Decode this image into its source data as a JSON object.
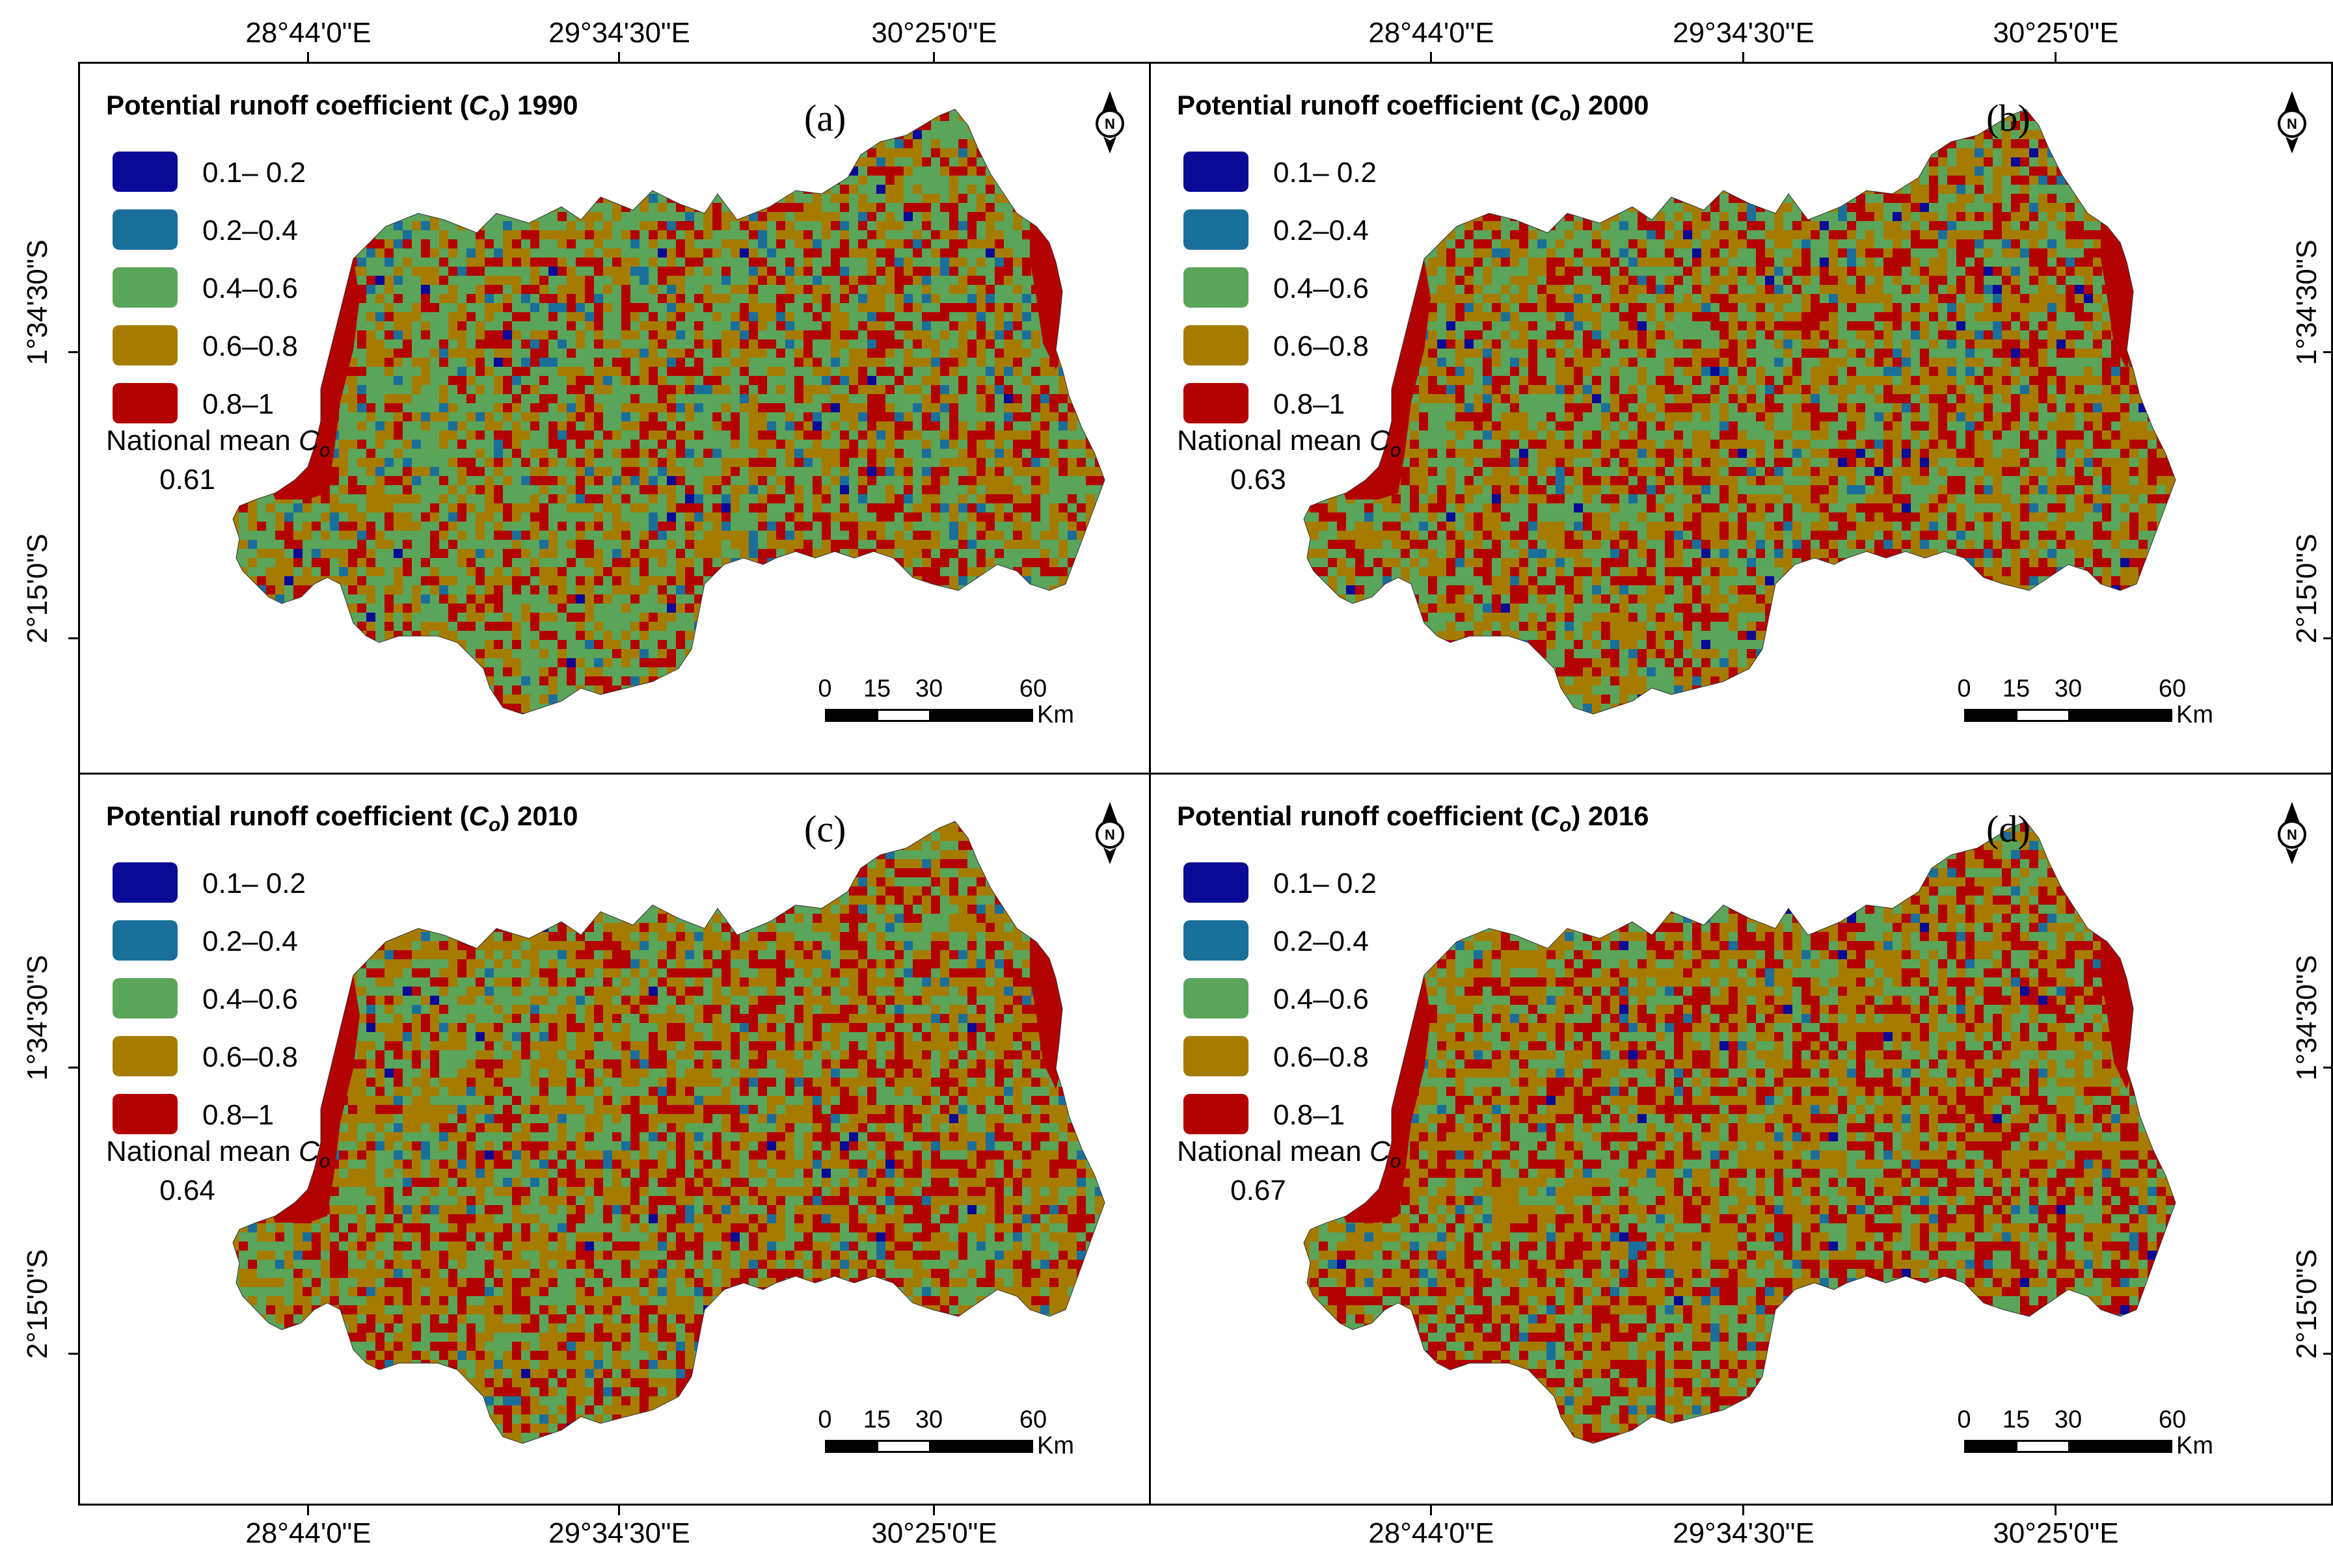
{
  "colors": {
    "class_0_1_0_2": "#0a0a96",
    "class_0_2_0_4": "#1a6f9a",
    "class_0_4_0_6": "#5aa55a",
    "class_0_6_0_8": "#a67c00",
    "class_0_8_1": "#b30000"
  },
  "axes": {
    "top_labels": [
      "28°44'0\"E",
      "29°34'30\"E",
      "30°25'0\"E",
      "28°44'0\"E",
      "29°34'30\"E",
      "30°25'0\"E"
    ],
    "bottom_labels": [
      "28°44'0\"E",
      "29°34'30\"E",
      "30°25'0\"E",
      "28°44'0\"E",
      "29°34'30\"E",
      "30°25'0\"E"
    ],
    "left_labels": [
      "1°34'30\"S",
      "2°15'0\"S",
      "1°34'30\"S",
      "2°15'0\"S"
    ],
    "right_labels": [
      "1°34'30\"S",
      "2°15'0\"S",
      "1°34'30\"S",
      "2°15'0\"S"
    ]
  },
  "legend_items": [
    "0.1– 0.2",
    "0.2–0.4",
    "0.4–0.6",
    "0.6–0.8",
    "0.8–1"
  ],
  "scale": {
    "ticks": [
      "0",
      "15",
      "30",
      "60"
    ],
    "unit": "Km"
  },
  "panels": [
    {
      "title_prefix": "Potential runoff coefficient (",
      "title_symbol": "C",
      "title_sub": "o",
      "title_suffix": ") 1990",
      "letter": "(a)",
      "mean_label": "National mean ",
      "mean_symbol": "C",
      "mean_sub": "o",
      "mean_value": "0.61",
      "class_shares": [
        0.01,
        0.05,
        0.45,
        0.31,
        0.18
      ]
    },
    {
      "title_prefix": "Potential runoff coefficient (",
      "title_symbol": "C",
      "title_sub": "o",
      "title_suffix": ") 2000",
      "letter": "(b)",
      "mean_label": "National mean ",
      "mean_symbol": "C",
      "mean_sub": "o",
      "mean_value": "0.63",
      "class_shares": [
        0.01,
        0.04,
        0.38,
        0.36,
        0.21
      ]
    },
    {
      "title_prefix": "Potential runoff coefficient (",
      "title_symbol": "C",
      "title_sub": "o",
      "title_suffix": ") 2010",
      "letter": "(c)",
      "mean_label": "National mean ",
      "mean_symbol": "C",
      "mean_sub": "o",
      "mean_value": "0.64",
      "class_shares": [
        0.005,
        0.035,
        0.33,
        0.4,
        0.23
      ]
    },
    {
      "title_prefix": "Potential runoff coefficient (",
      "title_symbol": "C",
      "title_sub": "o",
      "title_suffix": ") 2016",
      "letter": "(d)",
      "mean_label": "National mean ",
      "mean_symbol": "C",
      "mean_sub": "o",
      "mean_value": "0.67",
      "class_shares": [
        0.005,
        0.03,
        0.3,
        0.4,
        0.265
      ]
    }
  ]
}
